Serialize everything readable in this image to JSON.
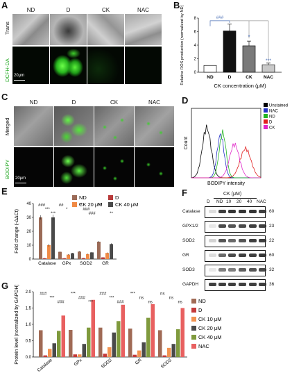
{
  "panel_labels": {
    "A": "A",
    "B": "B",
    "C": "C",
    "D": "D",
    "E": "E",
    "F": "F",
    "G": "G"
  },
  "panelA": {
    "columns": [
      "ND",
      "D",
      "CK",
      "NAC"
    ],
    "rows": [
      "Trans",
      "DCFH-DA"
    ],
    "scale": "20μm"
  },
  "panelC": {
    "columns": [
      "ND",
      "D",
      "CK",
      "NAC"
    ],
    "rows": [
      "Merged",
      "BODIPY"
    ],
    "scale": "20μm"
  },
  "panelF": {
    "header": "CK (μM)",
    "lanes": [
      "D",
      "ND",
      "10",
      "20",
      "40",
      "NAC"
    ],
    "rows": [
      {
        "name": "Catalase",
        "mw": "60"
      },
      {
        "name": "GPX1/2",
        "mw": "23"
      },
      {
        "name": "SOD2",
        "mw": "22"
      },
      {
        "name": "GR",
        "mw": "60"
      },
      {
        "name": "SOD3",
        "mw": "32"
      },
      {
        "name": "GAPDH",
        "mw": "36"
      }
    ]
  },
  "chart_data": [
    {
      "panel": "B",
      "type": "bar",
      "categories": [
        "ND",
        "D",
        "CK",
        "NAC"
      ],
      "values": [
        1.0,
        6.1,
        3.9,
        1.1
      ],
      "errors": [
        0.0,
        1.0,
        0.7,
        0.25
      ],
      "colors": [
        "#ffffff",
        "#111111",
        "#7a7a7a",
        "#c9c9c9"
      ],
      "ylabel": "Relative ROS production (normalized by ND)",
      "xlabel": "CK concentration (μM)",
      "ylim": [
        0,
        8
      ],
      "yticks": [
        "0",
        "2",
        "4",
        "6",
        "8"
      ],
      "annotations": {
        "top": "###",
        "CK": "*",
        "NAC": "***"
      }
    },
    {
      "panel": "D",
      "type": "line",
      "xlabel": "BODIPY intensity",
      "ylabel": "Count",
      "legend": [
        {
          "name": "Unstained",
          "color": "#000000"
        },
        {
          "name": "NAC",
          "color": "#2432c8"
        },
        {
          "name": "ND",
          "color": "#22b422"
        },
        {
          "name": "D",
          "color": "#e11d1d"
        },
        {
          "name": "CK",
          "color": "#e026c8"
        }
      ]
    },
    {
      "panel": "E",
      "type": "bar",
      "categories": [
        "Catalase",
        "GPx",
        "SOD2",
        "GR"
      ],
      "series": [
        {
          "name": "ND",
          "color": "#9b6b57",
          "values": [
            30,
            5.2,
            5.4,
            12.5
          ],
          "errors": [
            1.5,
            0.3,
            0.3,
            0.5
          ]
        },
        {
          "name": "D",
          "color": "#b83a3a",
          "values": [
            0.6,
            0.6,
            0.7,
            1.2
          ],
          "errors": [
            0.1,
            0.1,
            0.1,
            0.2
          ]
        },
        {
          "name": "CK 20 μM",
          "color": "#f08a45",
          "values": [
            10,
            3.2,
            3.6,
            4.4
          ],
          "errors": [
            1.0,
            0.3,
            0.3,
            0.4
          ]
        },
        {
          "name": "CK 40 μM",
          "color": "#4a4a4a",
          "values": [
            30,
            4.2,
            4.8,
            10.8
          ],
          "errors": [
            2.0,
            0.3,
            0.3,
            0.6
          ]
        }
      ],
      "ylabel": "Fold change (-ΔΔCt)",
      "ylim": [
        0,
        40
      ],
      "yticks": [
        "0",
        "10",
        "20",
        "30",
        "40"
      ],
      "annotations": [
        "###",
        "***",
        "***",
        "##",
        "*",
        "###",
        "**",
        "###",
        "**",
        "***"
      ]
    },
    {
      "panel": "G",
      "type": "bar",
      "categories": [
        "Catalase",
        "GPx",
        "SOD2",
        "GR",
        "SOD3"
      ],
      "series": [
        {
          "name": "ND",
          "color": "#a06a55",
          "values": [
            0.82,
            0.83,
            0.9,
            0.87,
            0.82
          ]
        },
        {
          "name": "D",
          "color": "#c43a3a",
          "values": [
            0.05,
            0.08,
            0.1,
            0.07,
            0.05
          ]
        },
        {
          "name": "CK 10 μM",
          "color": "#f29350",
          "values": [
            0.25,
            0.08,
            0.3,
            0.2,
            0.28
          ]
        },
        {
          "name": "CK 20 μM",
          "color": "#4a4a4a",
          "values": [
            0.42,
            0.4,
            0.75,
            0.45,
            0.4
          ]
        },
        {
          "name": "CK 40 μM",
          "color": "#7f9a3d",
          "values": [
            0.8,
            0.9,
            1.1,
            1.2,
            0.85
          ]
        },
        {
          "name": "NAC",
          "color": "#e86060",
          "values": [
            1.27,
            1.75,
            1.6,
            1.62,
            1.5
          ]
        }
      ],
      "ylabel": "Protein level (normalized by GAPDH)",
      "ylim": [
        0,
        2.0
      ],
      "yticks": [
        "0.0",
        "0.5",
        "1.0",
        "1.5",
        "2.0"
      ],
      "annotations": [
        "###",
        "***",
        "###",
        "***",
        "###",
        "***",
        "###",
        "***",
        "###",
        "***",
        "ns",
        "ns",
        "ns",
        "ns",
        "ns"
      ]
    }
  ]
}
